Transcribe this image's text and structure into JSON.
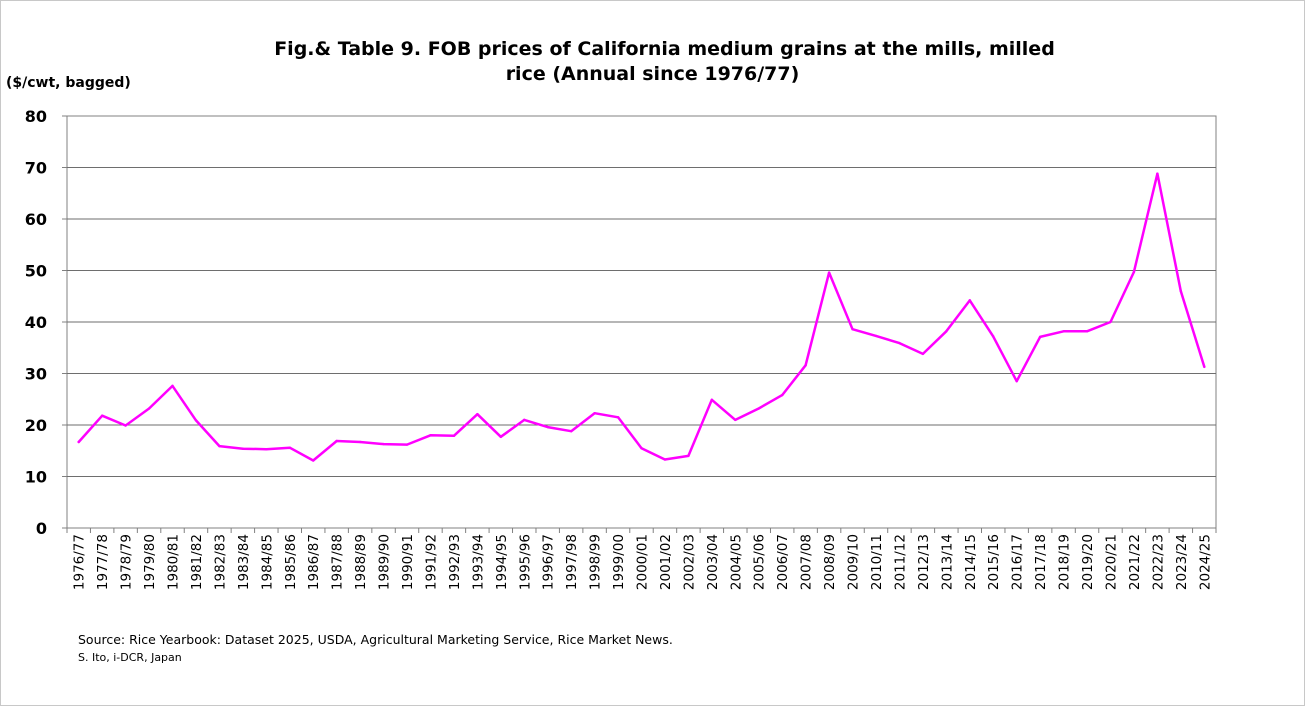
{
  "chart_data": {
    "type": "line",
    "title_line1": "Fig.& Table 9. FOB prices of California medium grains at the mills, milled",
    "title_line2": "rice (Annual since 1976/77)",
    "ylabel": "($/cwt, bagged)",
    "xlabel": "",
    "ylim": [
      0,
      80
    ],
    "yticks": [
      0,
      10,
      20,
      30,
      40,
      50,
      60,
      70,
      80
    ],
    "grid": true,
    "line_color": "#ff00ff",
    "categories": [
      "1976/77",
      "1977/78",
      "1978/79",
      "1979/80",
      "1980/81",
      "1981/82",
      "1982/83",
      "1983/84",
      "1984/85",
      "1985/86",
      "1986/87",
      "1987/88",
      "1988/89",
      "1989/90",
      "1990/91",
      "1991/92",
      "1992/93",
      "1993/94",
      "1994/95",
      "1995/96",
      "1996/97",
      "1997/98",
      "1998/99",
      "1999/00",
      "2000/01",
      "2001/02",
      "2002/03",
      "2003/04",
      "2004/05",
      "2005/06",
      "2006/07",
      "2007/08",
      "2008/09",
      "2009/10",
      "2010/11",
      "2011/12",
      "2012/13",
      "2013/14",
      "2014/15",
      "2015/16",
      "2016/17",
      "2017/18",
      "2018/19",
      "2019/20",
      "2020/21",
      "2021/22",
      "2022/23",
      "2023/24",
      "2024/25"
    ],
    "values": [
      16.7,
      21.8,
      19.9,
      23.2,
      27.6,
      20.9,
      15.9,
      15.4,
      15.3,
      15.6,
      13.1,
      16.9,
      16.7,
      16.3,
      16.2,
      18.0,
      17.9,
      22.1,
      17.7,
      21.0,
      19.6,
      18.8,
      22.3,
      21.5,
      15.5,
      13.3,
      14.0,
      24.9,
      21.0,
      23.2,
      25.8,
      31.6,
      49.6,
      38.6,
      37.3,
      35.9,
      33.8,
      38.2,
      44.2,
      37.2,
      28.5,
      37.1,
      38.2,
      38.2,
      40.0,
      49.7,
      68.8,
      46.0,
      31.3
    ]
  },
  "source": "Source:  Rice Yearbook: Dataset 2025, USDA, Agricultural Marketing Service, Rice Market News.",
  "credit": "S. Ito, i-DCR, Japan"
}
